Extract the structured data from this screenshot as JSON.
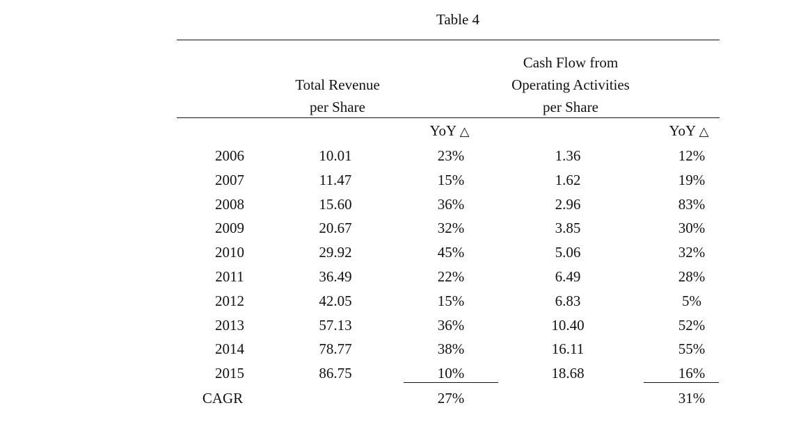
{
  "title": "Table 4",
  "headers": {
    "revenue": [
      "Total Revenue",
      "per Share"
    ],
    "cashflow": [
      "Cash Flow from",
      "Operating Activities",
      "per Share"
    ],
    "yoy_label": "YoY",
    "yoy_symbol": "△"
  },
  "rows": [
    {
      "year": "2006",
      "revenue": "10.01",
      "rev_yoy": "23%",
      "cf": "1.36",
      "cf_yoy": "12%"
    },
    {
      "year": "2007",
      "revenue": "11.47",
      "rev_yoy": "15%",
      "cf": "1.62",
      "cf_yoy": "19%"
    },
    {
      "year": "2008",
      "revenue": "15.60",
      "rev_yoy": "36%",
      "cf": "2.96",
      "cf_yoy": "83%"
    },
    {
      "year": "2009",
      "revenue": "20.67",
      "rev_yoy": "32%",
      "cf": "3.85",
      "cf_yoy": "30%"
    },
    {
      "year": "2010",
      "revenue": "29.92",
      "rev_yoy": "45%",
      "cf": "5.06",
      "cf_yoy": "32%"
    },
    {
      "year": "2011",
      "revenue": "36.49",
      "rev_yoy": "22%",
      "cf": "6.49",
      "cf_yoy": "28%"
    },
    {
      "year": "2012",
      "revenue": "42.05",
      "rev_yoy": "15%",
      "cf": "6.83",
      "cf_yoy": "5%"
    },
    {
      "year": "2013",
      "revenue": "57.13",
      "rev_yoy": "36%",
      "cf": "10.40",
      "cf_yoy": "52%"
    },
    {
      "year": "2014",
      "revenue": "78.77",
      "rev_yoy": "38%",
      "cf": "16.11",
      "cf_yoy": "55%"
    },
    {
      "year": "2015",
      "revenue": "86.75",
      "rev_yoy": "10%",
      "cf": "18.68",
      "cf_yoy": "16%"
    }
  ],
  "cagr": {
    "label": "CAGR",
    "rev_yoy": "27%",
    "cf_yoy": "31%"
  }
}
